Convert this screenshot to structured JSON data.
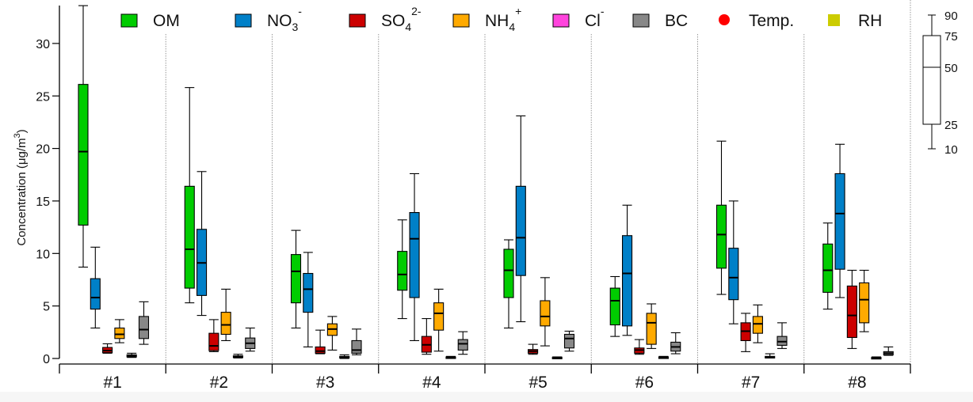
{
  "chart_data": {
    "type": "boxplot",
    "ylabel": "Concentration (μg/m",
    "ylabel_sup": "3",
    "ylabel_end": ")",
    "ylim": [
      0,
      34
    ],
    "yticks": [
      "0",
      "5",
      "10",
      "15",
      "20",
      "25",
      "30"
    ],
    "grid": "dotted vertical separators between groups",
    "legend_placement": "top",
    "categories": [
      "#1",
      "#2",
      "#3",
      "#4",
      "#5",
      "#6",
      "#7",
      "#8"
    ],
    "legend": [
      {
        "base": "OM",
        "sub": "",
        "sup": "",
        "color": "#00cc00",
        "marker": "square"
      },
      {
        "base": "NO",
        "sub": "3",
        "sup": "-",
        "color": "#0080c8",
        "marker": "square"
      },
      {
        "base": "SO",
        "sub": "4",
        "sup": "2-",
        "color": "#cc0000",
        "marker": "square"
      },
      {
        "base": "NH",
        "sub": "4",
        "sup": "+",
        "color": "#ffaa00",
        "marker": "square"
      },
      {
        "base": "Cl",
        "sub": "",
        "sup": "-",
        "color": "#ff44dd",
        "marker": "square"
      },
      {
        "base": "BC",
        "sub": "",
        "sup": "",
        "color": "#888888",
        "marker": "square"
      },
      {
        "base": "Temp.",
        "sub": "",
        "sup": "",
        "color": "#ff0000",
        "marker": "circle"
      },
      {
        "base": "RH",
        "sub": "",
        "sup": "",
        "color": "#cccc00",
        "marker": "square"
      }
    ],
    "box_fields": [
      "p10",
      "p25",
      "p50",
      "p75",
      "p90"
    ],
    "series": [
      {
        "name": "OM",
        "color": "#00cc00",
        "values": [
          [
            8.7,
            12.7,
            19.7,
            26.1,
            33.6
          ],
          [
            5.3,
            6.7,
            10.4,
            16.4,
            25.8
          ],
          [
            2.9,
            5.3,
            8.3,
            9.9,
            12.2
          ],
          [
            3.8,
            6.5,
            8.0,
            10.2,
            13.2
          ],
          [
            2.9,
            5.8,
            8.4,
            10.4,
            11.3
          ],
          [
            2.1,
            3.2,
            5.5,
            6.7,
            7.8
          ],
          [
            6.1,
            8.6,
            11.8,
            14.6,
            20.7
          ],
          [
            4.7,
            6.3,
            8.4,
            10.9,
            12.9
          ]
        ]
      },
      {
        "name": "NO3-",
        "color": "#0080c8",
        "values": [
          [
            2.9,
            4.7,
            5.8,
            7.6,
            10.6
          ],
          [
            4.1,
            6.0,
            9.1,
            12.3,
            17.8
          ],
          [
            1.1,
            4.4,
            6.6,
            8.1,
            10.1
          ],
          [
            1.7,
            5.8,
            11.4,
            13.9,
            17.6
          ],
          [
            3.5,
            7.9,
            11.5,
            16.4,
            23.1
          ],
          [
            2.2,
            3.1,
            8.1,
            11.7,
            14.6
          ],
          [
            3.3,
            5.6,
            7.7,
            10.5,
            15.0
          ],
          [
            5.8,
            8.5,
            13.8,
            17.6,
            20.4
          ]
        ]
      },
      {
        "name": "SO42-",
        "color": "#cc0000",
        "values": [
          [
            0.5,
            0.55,
            0.75,
            1.05,
            1.4
          ],
          [
            0.65,
            0.75,
            1.2,
            2.4,
            3.7
          ],
          [
            0.45,
            0.5,
            0.7,
            1.1,
            2.7
          ],
          [
            0.4,
            0.6,
            1.3,
            2.1,
            3.8
          ],
          [
            0.4,
            0.5,
            0.7,
            0.85,
            1.35
          ],
          [
            0.4,
            0.5,
            0.8,
            1.0,
            1.8
          ],
          [
            0.65,
            1.7,
            2.6,
            3.4,
            4.3
          ],
          [
            0.95,
            2.0,
            4.1,
            6.9,
            8.4
          ]
        ]
      },
      {
        "name": "NH4+",
        "color": "#ffaa00",
        "values": [
          [
            1.5,
            1.9,
            2.3,
            2.9,
            3.7
          ],
          [
            1.7,
            2.3,
            3.2,
            4.4,
            6.6
          ],
          [
            0.8,
            2.2,
            2.8,
            3.3,
            4.0
          ],
          [
            0.7,
            2.7,
            4.3,
            5.3,
            6.6
          ],
          [
            1.2,
            3.1,
            4.0,
            5.5,
            7.7
          ],
          [
            0.95,
            1.35,
            3.4,
            4.3,
            5.2
          ],
          [
            1.5,
            2.4,
            3.3,
            4.0,
            5.1
          ],
          [
            2.55,
            3.4,
            5.6,
            7.2,
            8.4
          ]
        ]
      },
      {
        "name": "Cl-",
        "color": "#ff44dd",
        "values": [
          [
            0.1,
            0.15,
            0.25,
            0.35,
            0.5
          ],
          [
            0.05,
            0.1,
            0.15,
            0.25,
            0.4
          ],
          [
            0.0,
            0.05,
            0.1,
            0.2,
            0.35
          ],
          [
            0.05,
            0.05,
            0.1,
            0.15,
            0.2
          ],
          [
            0.05,
            0.08,
            0.1,
            0.12,
            0.15
          ],
          [
            0.05,
            0.05,
            0.1,
            0.15,
            0.2
          ],
          [
            0.05,
            0.1,
            0.15,
            0.2,
            0.45
          ],
          [
            0.0,
            0.05,
            0.05,
            0.1,
            0.15
          ]
        ]
      },
      {
        "name": "BC",
        "color": "#888888",
        "values": [
          [
            1.35,
            1.9,
            2.75,
            4.0,
            5.4
          ],
          [
            0.7,
            0.95,
            1.45,
            1.95,
            2.9
          ],
          [
            0.35,
            0.5,
            0.8,
            1.7,
            2.8
          ],
          [
            0.4,
            0.8,
            1.4,
            1.8,
            2.55
          ],
          [
            0.7,
            1.0,
            1.9,
            2.3,
            2.6
          ],
          [
            0.45,
            0.7,
            1.1,
            1.55,
            2.45
          ],
          [
            0.95,
            1.25,
            1.6,
            2.1,
            3.4
          ],
          [
            0.3,
            0.35,
            0.5,
            0.65,
            1.1
          ]
        ]
      }
    ],
    "key": {
      "labels": [
        "90",
        "75",
        "50",
        "25",
        "10"
      ]
    }
  }
}
